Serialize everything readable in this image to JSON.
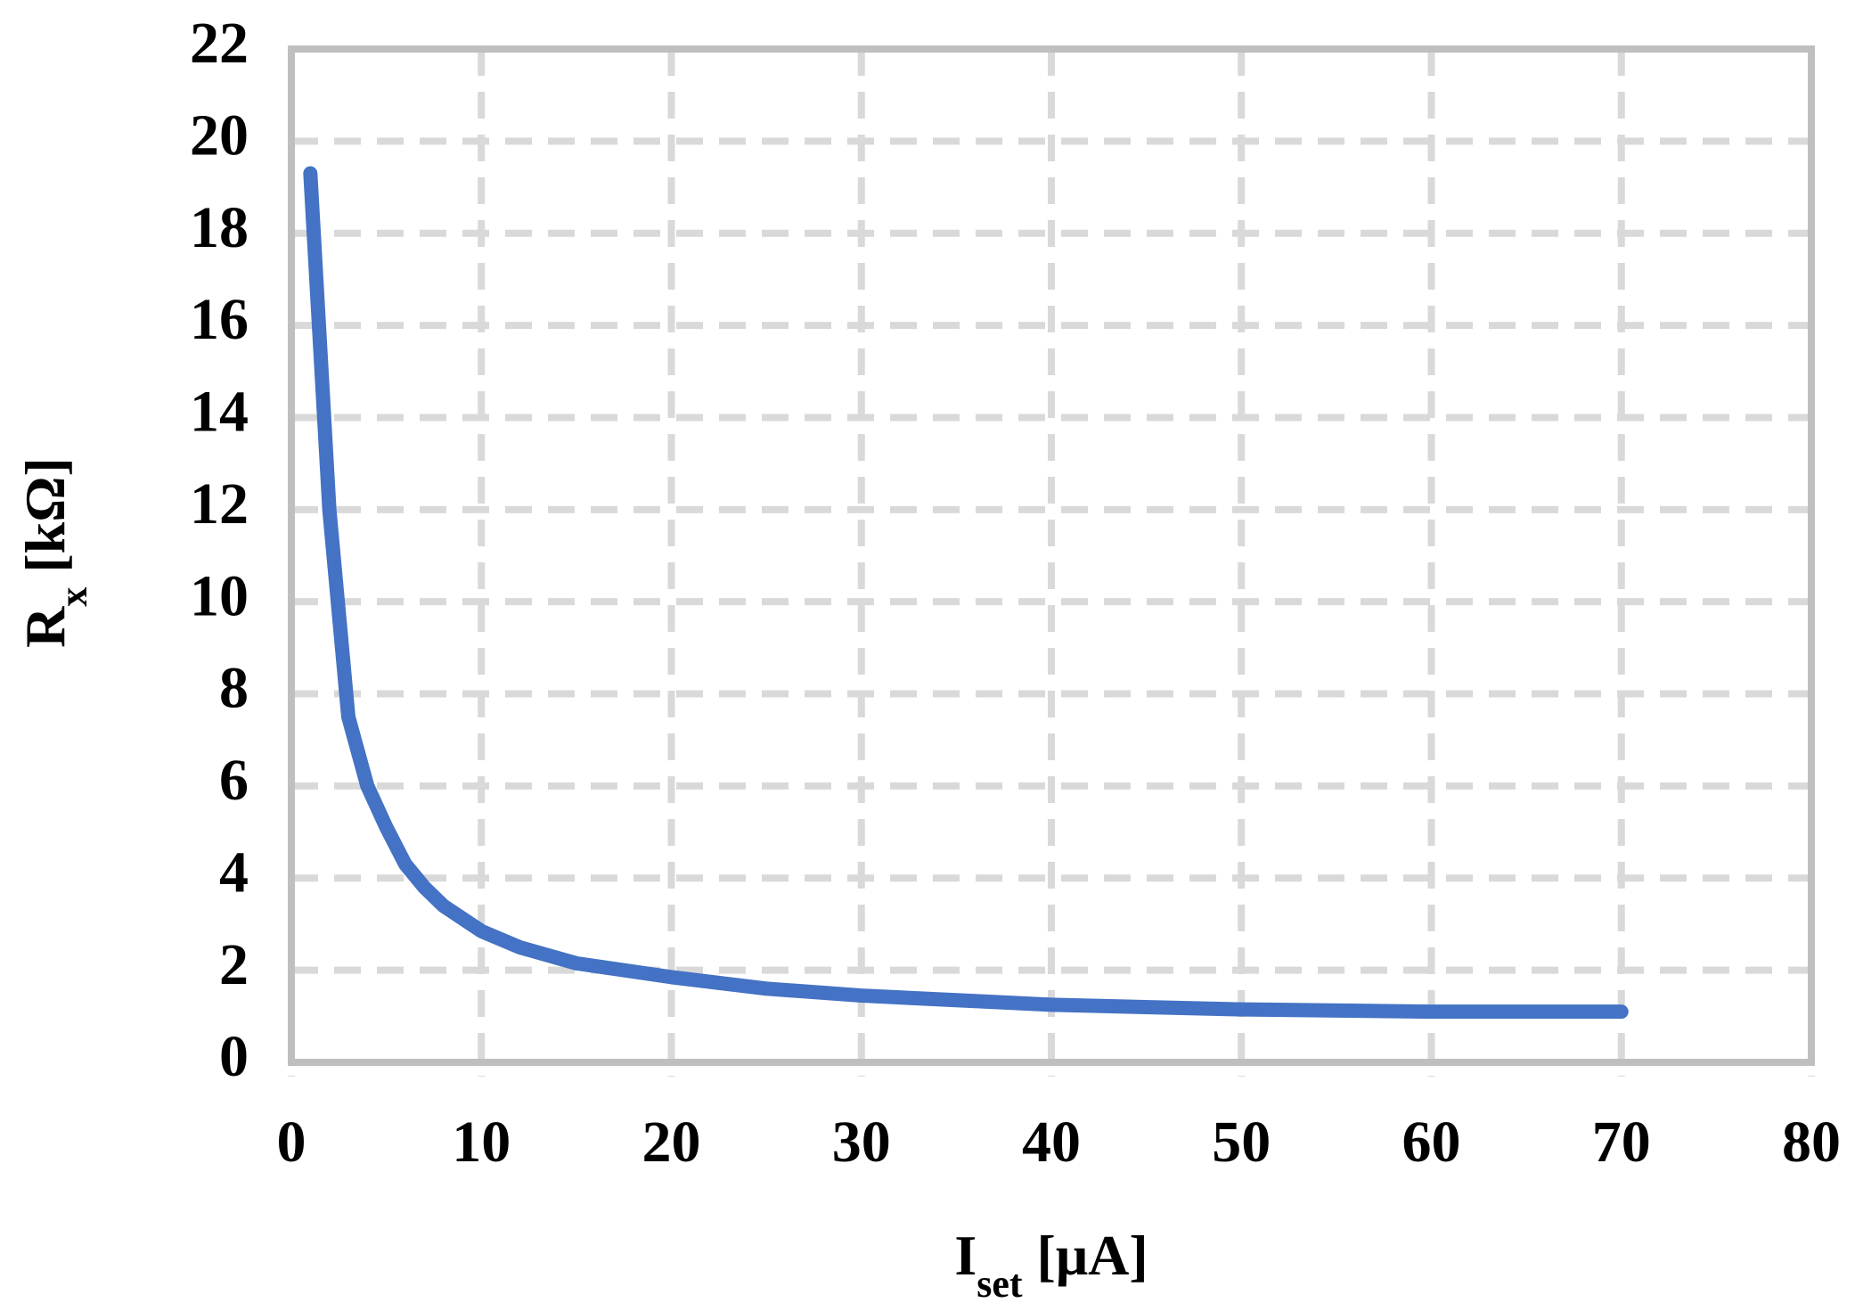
{
  "chart_data": {
    "type": "line",
    "xlabel": [
      "I",
      "set",
      " [μA]"
    ],
    "ylabel": [
      "R",
      "x",
      " [kΩ]"
    ],
    "x": [
      1,
      2,
      3,
      4,
      5,
      6,
      7,
      8,
      10,
      12,
      15,
      20,
      25,
      30,
      35,
      40,
      50,
      60,
      70
    ],
    "series": [
      {
        "color": "#4472c4",
        "values": [
          19.3,
          12,
          7.5,
          6,
          5.1,
          4.3,
          3.8,
          3.4,
          2.85,
          2.5,
          2.15,
          1.85,
          1.6,
          1.45,
          1.35,
          1.25,
          1.15,
          1.1,
          1.1
        ]
      }
    ],
    "xlim": [
      0,
      80
    ],
    "xticks": [
      0,
      10,
      20,
      30,
      40,
      50,
      60,
      70,
      80
    ],
    "ylim": [
      0,
      22
    ],
    "yticks": [
      0,
      2,
      4,
      6,
      8,
      10,
      12,
      14,
      16,
      18,
      20,
      22
    ],
    "grid": true
  }
}
